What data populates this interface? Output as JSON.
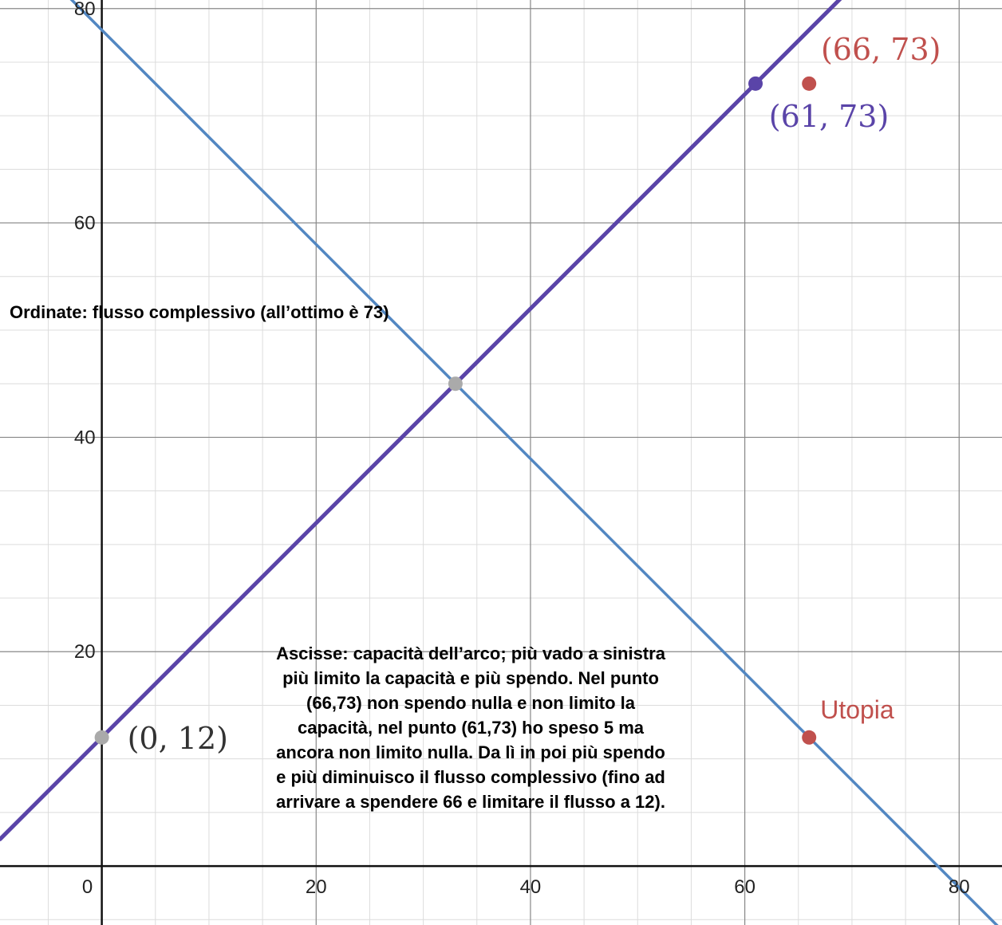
{
  "chart_data": {
    "type": "line",
    "xlim": [
      -9.5,
      84
    ],
    "ylim": [
      -5.5,
      80.8
    ],
    "grid": true,
    "x_ticks": [
      {
        "value": 0,
        "label": "0"
      },
      {
        "value": 20,
        "label": "20"
      },
      {
        "value": 40,
        "label": "40"
      },
      {
        "value": 60,
        "label": "60"
      },
      {
        "value": 80,
        "label": "80"
      }
    ],
    "y_ticks": [
      {
        "value": 20,
        "label": "20"
      },
      {
        "value": 40,
        "label": "40"
      },
      {
        "value": 60,
        "label": "60"
      },
      {
        "value": 80,
        "label": "80"
      }
    ],
    "series": [
      {
        "color": "#5a44a8",
        "slope": 1.0,
        "intercept": 12,
        "width": 5
      },
      {
        "color": "#5287c2",
        "slope": -1.0,
        "intercept": 78,
        "width": 3.5
      }
    ],
    "points": [
      {
        "x": 0,
        "y": 12,
        "color": "#aaaaaa",
        "label": "(0, 12)",
        "label_color": "#333333",
        "label_style": "math"
      },
      {
        "x": 33,
        "y": 45,
        "color": "#aaaaaa",
        "label": "",
        "label_style": "math"
      },
      {
        "x": 61,
        "y": 73,
        "color": "#5a44a8",
        "label": "(61, 73)",
        "label_color": "#5a44a8",
        "label_style": "math"
      },
      {
        "x": 66,
        "y": 73,
        "color": "#c0504d",
        "label": "(66, 73)",
        "label_color": "#c0504d",
        "label_style": "math"
      },
      {
        "x": 66,
        "y": 12,
        "color": "#c0504d",
        "label": "Utopia",
        "label_color": "#c0504d",
        "label_style": "plain"
      }
    ],
    "annotations": [
      {
        "name": "ordinate-note",
        "lines": [
          "Ordinate: flusso complessivo (all’ottimo è 73)"
        ]
      },
      {
        "name": "abscissa-note",
        "lines": [
          "Ascisse: capacità dell’arco; più vado a sinistra",
          "più limito la capacità e più spendo. Nel punto",
          "(66,73) non spendo nulla e non limito la",
          "capacità, nel punto (61,73) ho speso 5 ma",
          "ancora non limito nulla. Da lì in poi più spendo",
          "e più diminuisco il flusso complessivo (fino ad",
          "arrivare a spendere 66 e limitare il flusso a 12)."
        ]
      }
    ]
  }
}
